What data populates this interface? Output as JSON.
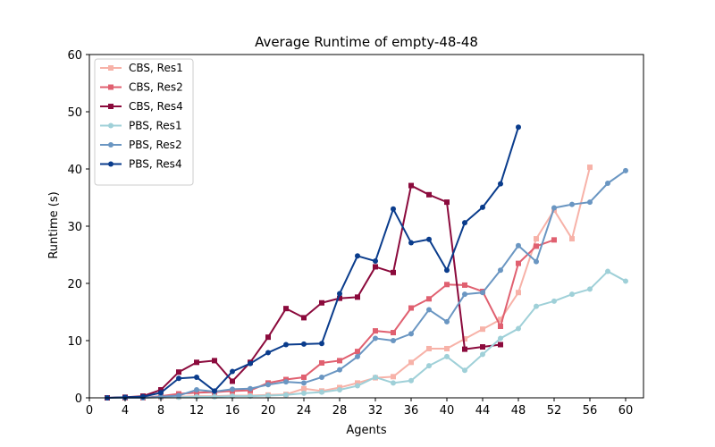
{
  "chart_data": {
    "type": "line",
    "title": "Average Runtime of empty-48-48",
    "xlabel": "Agents",
    "ylabel": "Runtime (s)",
    "xlim": [
      0,
      62
    ],
    "ylim": [
      0,
      60
    ],
    "xticks": [
      0,
      4,
      8,
      12,
      16,
      20,
      24,
      28,
      32,
      36,
      40,
      44,
      48,
      52,
      56,
      60
    ],
    "yticks": [
      0,
      10,
      20,
      30,
      40,
      50,
      60
    ],
    "grid": false,
    "legend_position": "top-left",
    "series": [
      {
        "name": "CBS, Res1",
        "color": "#f7b2a8",
        "marker": "square",
        "x": [
          2,
          4,
          6,
          8,
          10,
          12,
          14,
          16,
          18,
          20,
          22,
          24,
          26,
          28,
          30,
          32,
          34,
          36,
          38,
          40,
          42,
          44,
          46,
          48,
          50,
          52,
          54,
          56
        ],
        "y": [
          0,
          0,
          0,
          0.1,
          0.2,
          0.3,
          0.3,
          0.4,
          0.4,
          0.5,
          0.6,
          1.6,
          1.2,
          1.8,
          2.6,
          3.5,
          3.7,
          6.2,
          8.6,
          8.6,
          10.3,
          12.0,
          13.7,
          18.4,
          27.8,
          32.8,
          27.8,
          40.3
        ]
      },
      {
        "name": "CBS, Res2",
        "color": "#e06070",
        "marker": "square",
        "x": [
          2,
          4,
          6,
          8,
          10,
          12,
          14,
          16,
          18,
          20,
          22,
          24,
          26,
          28,
          30,
          32,
          34,
          36,
          38,
          40,
          42,
          44,
          46,
          48,
          50,
          52
        ],
        "y": [
          0,
          0,
          0,
          0.3,
          0.7,
          0.9,
          1.0,
          1.2,
          1.3,
          2.6,
          3.2,
          3.6,
          6.1,
          6.5,
          8.1,
          11.7,
          11.4,
          15.7,
          17.3,
          19.8,
          19.7,
          18.6,
          12.5,
          23.5,
          26.5,
          27.6
        ]
      },
      {
        "name": "CBS, Res4",
        "color": "#8b0a3c",
        "marker": "square",
        "x": [
          2,
          4,
          6,
          8,
          10,
          12,
          14,
          16,
          18,
          20,
          22,
          24,
          26,
          28,
          30,
          32,
          34,
          36,
          38,
          40,
          42,
          44,
          46
        ],
        "y": [
          0,
          0.1,
          0.3,
          1.4,
          4.5,
          6.2,
          6.5,
          2.9,
          6.2,
          10.6,
          15.6,
          14.0,
          16.6,
          17.4,
          17.6,
          22.9,
          21.9,
          37.1,
          35.5,
          34.2,
          8.5,
          8.9,
          9.3
        ]
      },
      {
        "name": "PBS, Res1",
        "color": "#9fd0d8",
        "marker": "circle",
        "x": [
          2,
          4,
          6,
          8,
          10,
          12,
          14,
          16,
          18,
          20,
          22,
          24,
          26,
          28,
          30,
          32,
          34,
          36,
          38,
          40,
          42,
          44,
          46,
          48,
          50,
          52,
          54,
          56,
          58,
          60
        ],
        "y": [
          0,
          0,
          0,
          0.1,
          0.1,
          0.2,
          0.2,
          0.3,
          0.3,
          0.4,
          0.5,
          0.8,
          1.0,
          1.4,
          2.1,
          3.6,
          2.6,
          3.0,
          5.6,
          7.2,
          4.8,
          7.6,
          10.4,
          12.1,
          16.0,
          16.9,
          18.1,
          19.0,
          22.1,
          20.4
        ]
      },
      {
        "name": "PBS, Res2",
        "color": "#6a96c2",
        "marker": "circle",
        "x": [
          2,
          4,
          6,
          8,
          10,
          12,
          14,
          16,
          18,
          20,
          22,
          24,
          26,
          28,
          30,
          32,
          34,
          36,
          38,
          40,
          42,
          44,
          46,
          48,
          50,
          52,
          54,
          56,
          58,
          60
        ],
        "y": [
          0,
          0,
          0,
          0.2,
          0.4,
          1.4,
          1.1,
          1.5,
          1.6,
          2.3,
          2.8,
          2.6,
          3.6,
          4.9,
          7.2,
          10.4,
          10.0,
          11.2,
          15.4,
          13.3,
          18.1,
          18.4,
          22.3,
          26.6,
          23.8,
          33.2,
          33.8,
          34.2,
          37.5,
          39.7
        ]
      },
      {
        "name": "PBS, Res4",
        "color": "#0a3c8c",
        "marker": "circle",
        "x": [
          2,
          4,
          6,
          8,
          10,
          12,
          14,
          16,
          18,
          20,
          22,
          24,
          26,
          28,
          30,
          32,
          34,
          36,
          38,
          40,
          42,
          44,
          46,
          48
        ],
        "y": [
          0,
          0.1,
          0.2,
          0.9,
          3.4,
          3.6,
          1.2,
          4.6,
          6.0,
          7.9,
          9.3,
          9.4,
          9.5,
          18.2,
          24.8,
          23.9,
          33.0,
          27.1,
          27.7,
          22.3,
          30.6,
          33.3,
          37.4,
          47.3
        ]
      }
    ]
  }
}
